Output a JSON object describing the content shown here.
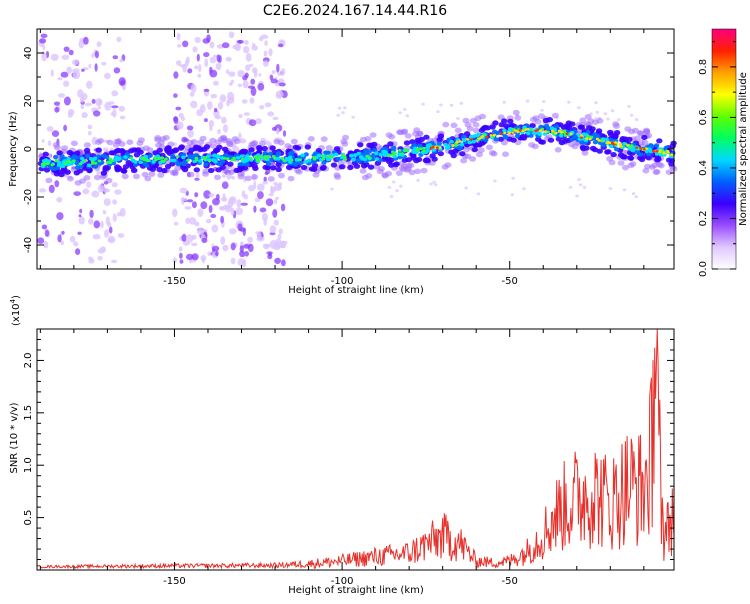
{
  "page": {
    "title": "C2E6.2024.167.14.44.R16"
  },
  "colors": {
    "axis": "#000000",
    "snr_line": "#e8302a",
    "spectro_bg": "#ffffff",
    "colorbar_stops": [
      "#ffffff",
      "#e0c8ff",
      "#9a4cff",
      "#3a00ff",
      "#0060ff",
      "#00d8ff",
      "#00ff60",
      "#60ff00",
      "#ffff00",
      "#ffa000",
      "#ff2000",
      "#ff0080"
    ]
  },
  "chart_data": [
    {
      "type": "heatmap",
      "name": "spectrogram",
      "title": "C2E6.2024.167.14.44.R16",
      "xlabel": "Height of straight line (km)",
      "ylabel": "Frequency (Hz)",
      "xlim": [
        -191,
        -1
      ],
      "ylim": [
        -50,
        50
      ],
      "x_ticks": [
        "-150",
        "-100",
        "-50"
      ],
      "y_ticks": [
        "-40",
        "-20",
        "0",
        "20",
        "40"
      ],
      "colorbar": {
        "label": "Normalized spectral amplitude",
        "range": [
          0.0,
          0.95
        ],
        "ticks": [
          "0.0",
          "0.2",
          "0.4",
          "0.6",
          "0.8"
        ]
      },
      "ridge_x": [
        -190,
        -170,
        -150,
        -130,
        -110,
        -90,
        -70,
        -55,
        -45,
        -35,
        -25,
        -15,
        -5,
        -1
      ],
      "ridge_freq": [
        -6,
        -5,
        -4,
        -4,
        -4,
        -3,
        1,
        6,
        8,
        7,
        4,
        1,
        -1,
        -2
      ],
      "noise_regions_x": [
        [
          -190,
          -165
        ],
        [
          -150,
          -117
        ]
      ]
    },
    {
      "type": "line",
      "name": "snr",
      "xlabel": "Height of straight line (km)",
      "ylabel": "SNR (10 * v/v)",
      "y_multiplier": "(x10",
      "y_multiplier_exp": "4",
      "y_multiplier_close": ")",
      "xlim": [
        -191,
        -1
      ],
      "ylim": [
        0,
        23000
      ],
      "x_ticks": [
        "-150",
        "-100",
        "-50"
      ],
      "y_ticks": [
        "0.5",
        "1.0",
        "1.5",
        "2.0"
      ],
      "envelope_x": [
        -191,
        -150,
        -120,
        -110,
        -100,
        -90,
        -80,
        -75,
        -70,
        -65,
        -60,
        -55,
        -50,
        -45,
        -40,
        -35,
        -30,
        -25,
        -20,
        -15,
        -10,
        -6,
        -4,
        -1
      ],
      "envelope_y": [
        300,
        500,
        600,
        1000,
        1500,
        2200,
        2800,
        4200,
        5600,
        4500,
        1500,
        1200,
        1500,
        3000,
        6000,
        10000,
        12000,
        13000,
        11000,
        14000,
        13500,
        23000,
        5000,
        10000
      ]
    }
  ]
}
